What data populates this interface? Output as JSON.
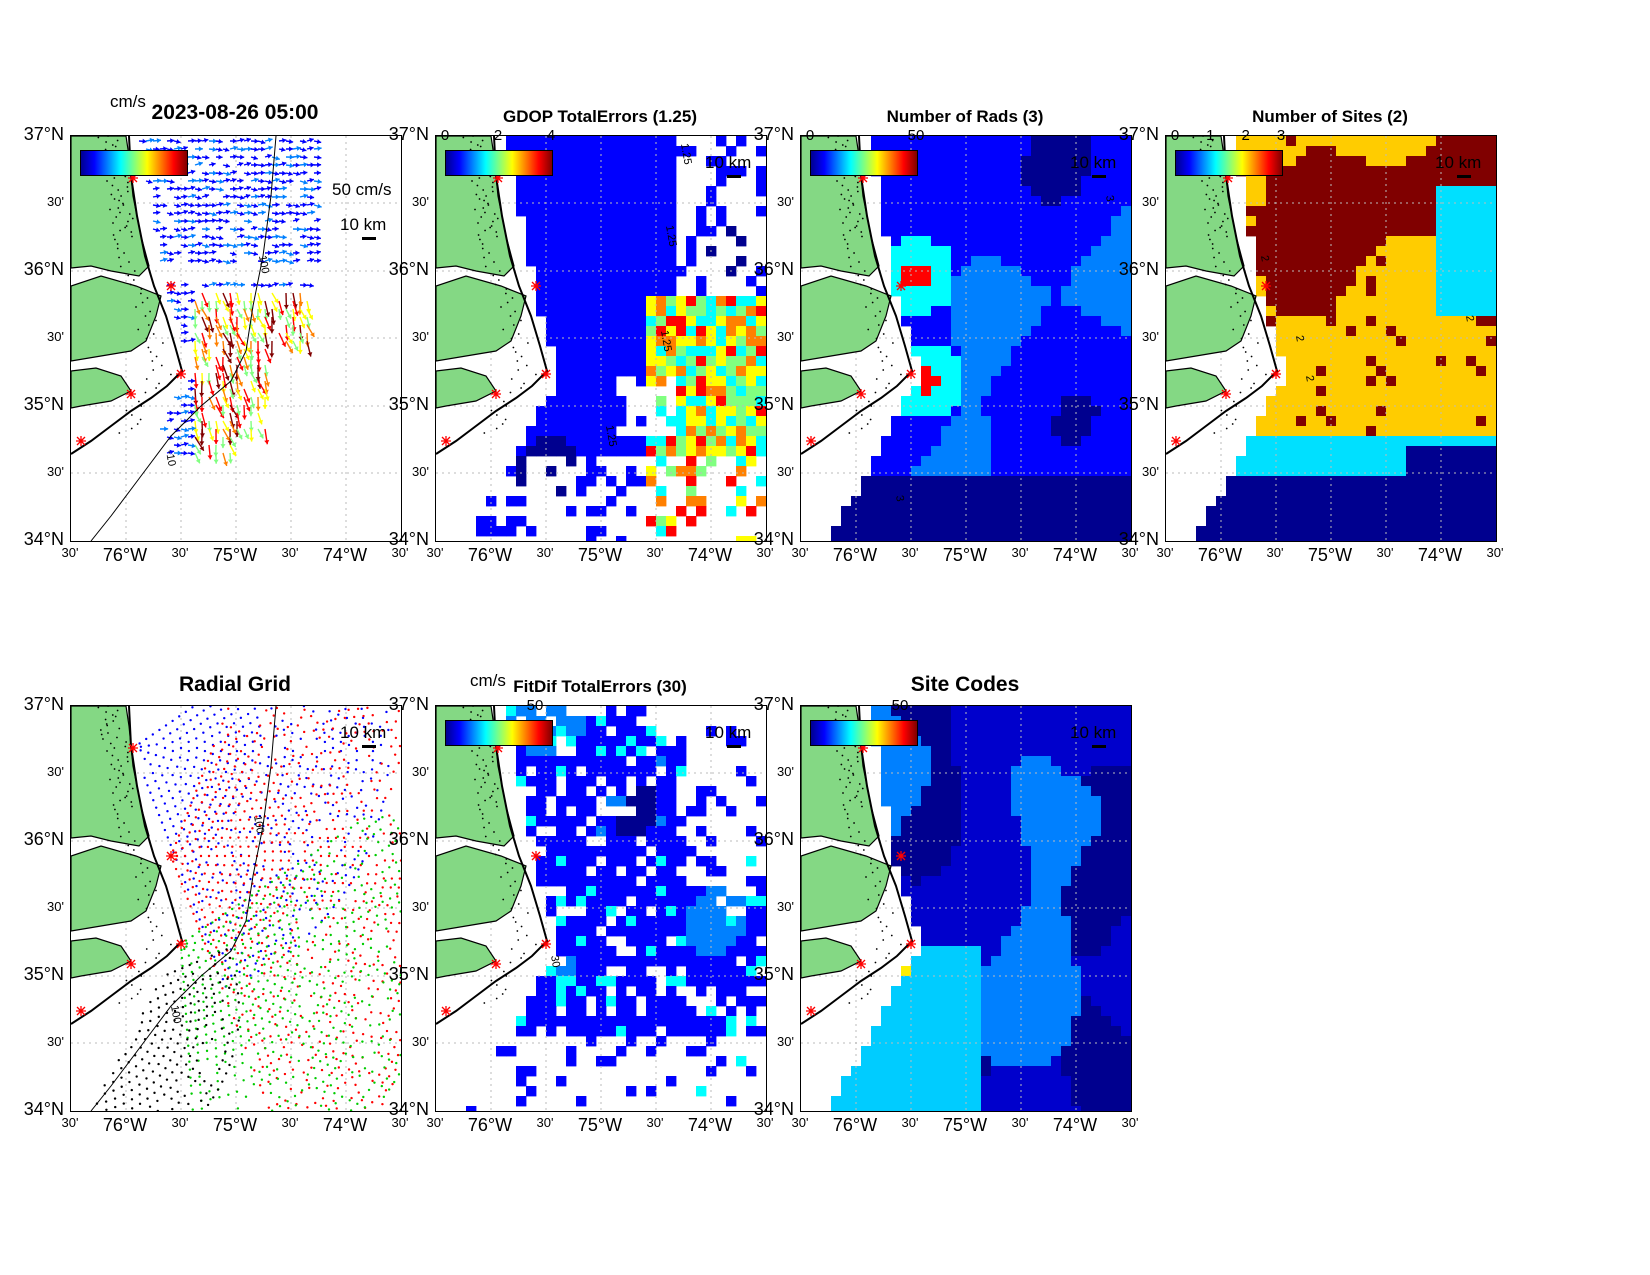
{
  "figure": {
    "timestamp": "2023-08-26 05:00",
    "lat_ticks": [
      "37°N",
      "30'",
      "36°N",
      "30'",
      "35°N",
      "30'",
      "34°N"
    ],
    "lon_ticks": [
      "30'",
      "76°W",
      "30'",
      "75°W",
      "30'",
      "74°W",
      "30'"
    ],
    "scale_label": "10 km",
    "colors": {
      "land": "#84d884",
      "ocean": "#ffffff",
      "coastline": "#000000",
      "site_marker": "#ff0000",
      "colormap": [
        "#00008f",
        "#0000ff",
        "#0080ff",
        "#00ffff",
        "#80ff80",
        "#ffff00",
        "#ff8000",
        "#ff0000",
        "#800000"
      ]
    }
  },
  "panels": [
    {
      "key": "currents",
      "title": "",
      "colorbar_unit": "cm/s",
      "colorbar_ticks": [],
      "vector_scale_label": "50 cm/s",
      "contour_labels": [
        "100",
        "-10"
      ],
      "icons": [
        "vector-arrow-icon"
      ]
    },
    {
      "key": "gdop",
      "title": "GDOP TotalErrors (1.25)",
      "colorbar_ticks": [
        "0",
        "2",
        "4"
      ],
      "contour_labels": [
        "1.25",
        "1.25",
        "1.25",
        "1.25"
      ]
    },
    {
      "key": "rads",
      "title": "Number of Rads (3)",
      "colorbar_ticks": [
        "0",
        "50"
      ],
      "contour_labels": [
        "3",
        "3"
      ]
    },
    {
      "key": "sites",
      "title": "Number of Sites (2)",
      "colorbar_ticks": [
        "0",
        "1",
        "2",
        "3"
      ],
      "contour_labels": [
        "2",
        "2",
        "2",
        "2"
      ]
    },
    {
      "key": "radial",
      "title": "Radial Grid",
      "contour_labels": [
        "100",
        "100"
      ],
      "site_colors": [
        "#0000ff",
        "#ff0000",
        "#00cc00",
        "#ff0000",
        "#000000"
      ]
    },
    {
      "key": "fitdif",
      "title": "FitDif TotalErrors (30)",
      "colorbar_unit": "cm/s",
      "colorbar_ticks": [
        "50"
      ],
      "contour_labels": [
        "30"
      ]
    },
    {
      "key": "codes",
      "title": "Site Codes",
      "colorbar_ticks": [
        "50"
      ]
    }
  ]
}
